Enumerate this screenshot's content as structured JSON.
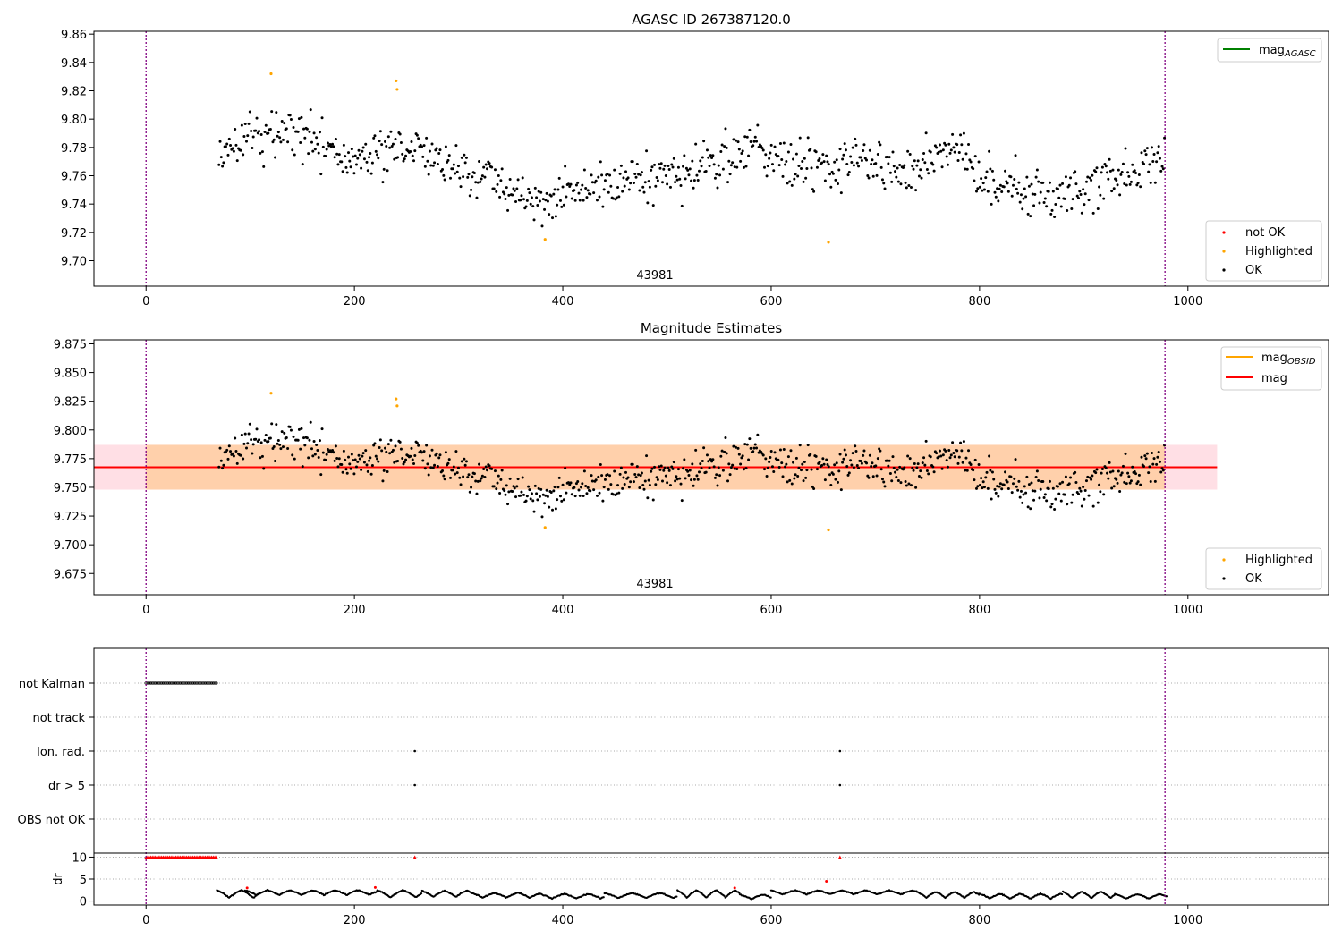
{
  "chart_data": [
    {
      "type": "scatter",
      "title": "AGASC ID 267387120.0",
      "annotation": "43981",
      "xlim": [
        -50,
        1135
      ],
      "ylim": [
        9.682,
        9.862
      ],
      "xticks": [
        0,
        200,
        400,
        600,
        800,
        1000
      ],
      "yticks": [
        9.7,
        9.72,
        9.74,
        9.76,
        9.78,
        9.8,
        9.82,
        9.84,
        9.86
      ],
      "vlines": [
        0,
        978
      ],
      "series_ok": {
        "name": "OK",
        "color": "#000000",
        "x_start": 70,
        "x_end": 978,
        "trend": [
          [
            70,
            9.781
          ],
          [
            150,
            9.792
          ],
          [
            200,
            9.772
          ],
          [
            260,
            9.78
          ],
          [
            300,
            9.765
          ],
          [
            380,
            9.74
          ],
          [
            430,
            9.752
          ],
          [
            500,
            9.758
          ],
          [
            580,
            9.78
          ],
          [
            640,
            9.766
          ],
          [
            700,
            9.774
          ],
          [
            730,
            9.758
          ],
          [
            770,
            9.782
          ],
          [
            820,
            9.752
          ],
          [
            880,
            9.746
          ],
          [
            940,
            9.765
          ],
          [
            978,
            9.772
          ]
        ]
      },
      "highlighted": {
        "name": "Highlighted",
        "color": "#ffa500",
        "points": [
          [
            120,
            9.832
          ],
          [
            240,
            9.827
          ],
          [
            241,
            9.821
          ],
          [
            383,
            9.715
          ],
          [
            655,
            9.713
          ]
        ]
      },
      "not_ok": {
        "name": "not OK",
        "color": "#ff0000",
        "points": []
      },
      "legend_upper": [
        {
          "label": "mag",
          "sub": "AGASC",
          "color": "#008000"
        }
      ],
      "legend_lower": [
        {
          "label": "not OK",
          "color": "#ff0000"
        },
        {
          "label": "Highlighted",
          "color": "#ffa500"
        },
        {
          "label": "OK",
          "color": "#000000"
        }
      ]
    },
    {
      "type": "scatter",
      "title": "Magnitude Estimates",
      "annotation": "43981",
      "xlim": [
        -50,
        1135
      ],
      "ylim": [
        9.6565,
        9.8785
      ],
      "xticks": [
        0,
        200,
        400,
        600,
        800,
        1000
      ],
      "yticks": [
        9.675,
        9.7,
        9.725,
        9.75,
        9.775,
        9.8,
        9.825,
        9.85,
        9.875
      ],
      "vlines": [
        0,
        978
      ],
      "mag": 9.7675,
      "mag_band": [
        9.748,
        9.787
      ],
      "band_x": [
        -50,
        1028
      ],
      "obsid_x": [
        0,
        978
      ],
      "legend_upper": [
        {
          "label": "mag",
          "sub": "OBSID",
          "color": "#ffa500"
        },
        {
          "label": "mag",
          "sub": "",
          "color": "#ff0000"
        }
      ],
      "legend_lower": [
        {
          "label": "Highlighted",
          "color": "#ffa500"
        },
        {
          "label": "OK",
          "color": "#000000"
        }
      ]
    },
    {
      "type": "scatter",
      "xlim": [
        -50,
        1135
      ],
      "xticks": [
        0,
        200,
        400,
        600,
        800,
        1000
      ],
      "vlines": [
        0,
        978
      ],
      "flag_labels": [
        "not Kalman",
        "not track",
        "Ion. rad.",
        "dr > 5",
        "OBS not OK"
      ],
      "not_kalman_range": [
        0,
        68
      ],
      "flag_points": [
        {
          "flag": "Ion. rad.",
          "x": [
            258,
            666
          ]
        },
        {
          "flag": "dr > 5",
          "x": [
            258,
            666
          ]
        }
      ],
      "dr_ylabel": "dr",
      "dr_yticks": [
        0,
        5,
        10
      ],
      "dr_ylim": [
        -0.5,
        10.5
      ],
      "dr_capped": {
        "value": 10,
        "x_range": [
          0,
          68
        ],
        "extra_x": [
          258,
          666
        ],
        "color": "#ff0000"
      },
      "dr_segments": [
        [
          68,
          110,
          3.0,
          0.2
        ],
        [
          95,
          222,
          2.8,
          1.0
        ],
        [
          222,
          265,
          3.0,
          0.3
        ],
        [
          265,
          312,
          2.8,
          0.5
        ],
        [
          312,
          378,
          2.2,
          0.4
        ],
        [
          378,
          440,
          2.0,
          0.2
        ],
        [
          440,
          510,
          2.2,
          0.3
        ],
        [
          510,
          570,
          3.0,
          0.2
        ],
        [
          570,
          600,
          1.8,
          0.1
        ],
        [
          600,
          740,
          2.7,
          1.2
        ],
        [
          740,
          800,
          2.5,
          0.3
        ],
        [
          800,
          880,
          2.0,
          0.2
        ],
        [
          880,
          930,
          2.6,
          0.2
        ],
        [
          930,
          980,
          1.9,
          0.2
        ]
      ],
      "dr_red_points": [
        [
          97,
          3.0
        ],
        [
          220,
          3.1
        ],
        [
          565,
          3.0
        ],
        [
          653,
          4.5
        ]
      ]
    }
  ]
}
